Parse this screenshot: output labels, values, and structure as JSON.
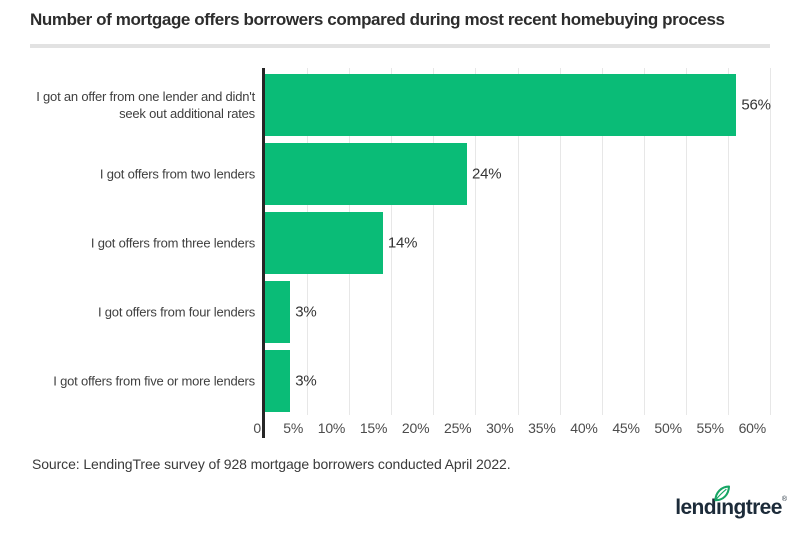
{
  "logo": {
    "text": "lendingtree",
    "registered": "®"
  },
  "chart_data": {
    "type": "bar",
    "orientation": "horizontal",
    "title": "Number of mortgage offers borrowers compared during most recent homebuying process",
    "source": "Source: LendingTree survey of 928 mortgage borrowers conducted April 2022.",
    "categories": [
      "I got an offer from one lender and didn't\nseek out additional rates",
      "I got offers from two lenders",
      "I got offers from three lenders",
      "I got offers from four lenders",
      "I got offers from five or more lenders"
    ],
    "values": [
      56,
      24,
      14,
      3,
      3
    ],
    "value_labels": [
      "56%",
      "24%",
      "14%",
      "3%",
      "3%"
    ],
    "x_ticks": [
      {
        "value": 0,
        "label": "0"
      },
      {
        "value": 5,
        "label": "5%"
      },
      {
        "value": 10,
        "label": "10%"
      },
      {
        "value": 15,
        "label": "15%"
      },
      {
        "value": 20,
        "label": "20%"
      },
      {
        "value": 25,
        "label": "25%"
      },
      {
        "value": 30,
        "label": "30%"
      },
      {
        "value": 35,
        "label": "35%"
      },
      {
        "value": 40,
        "label": "40%"
      },
      {
        "value": 45,
        "label": "45%"
      },
      {
        "value": 50,
        "label": "50%"
      },
      {
        "value": 55,
        "label": "55%"
      },
      {
        "value": 60,
        "label": "60%"
      }
    ],
    "xlim": [
      0,
      62.5
    ],
    "grid": "vertical",
    "legend": "none",
    "colors": {
      "bar": "#0abc77",
      "axis-line": "#262626",
      "gridline": "#e7e7e7",
      "title": "#2d2d2d",
      "category-text": "#3f3f3f",
      "tick-text": "#4c4c4c",
      "value-text": "#353535",
      "divider": "#e2e2e2",
      "source-text": "#3a3a3a",
      "logo-navy": "#1c2b39",
      "leaf-green": "#16a564"
    }
  }
}
